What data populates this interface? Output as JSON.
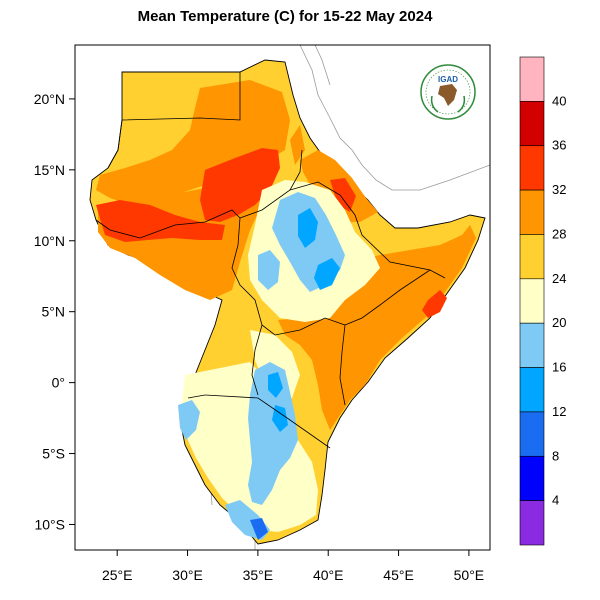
{
  "title": "Mean Temperature (C) for 15-22 May 2024",
  "logo": {
    "text": "IGAD",
    "colors": {
      "ring": "#2e8b3a",
      "text": "#1b5fa8",
      "land": "#8a5a2b"
    }
  },
  "axes": {
    "x_ticks": [
      {
        "value": 25,
        "label": "25°E"
      },
      {
        "value": 30,
        "label": "30°E"
      },
      {
        "value": 35,
        "label": "35°E"
      },
      {
        "value": 40,
        "label": "40°E"
      },
      {
        "value": 45,
        "label": "45°E"
      },
      {
        "value": 50,
        "label": "50°E"
      }
    ],
    "y_ticks": [
      {
        "value": 20,
        "label": "20°N"
      },
      {
        "value": 15,
        "label": "15°N"
      },
      {
        "value": 10,
        "label": "10°N"
      },
      {
        "value": 5,
        "label": "5°N"
      },
      {
        "value": 0,
        "label": "0°"
      },
      {
        "value": -5,
        "label": "5°S"
      },
      {
        "value": -10,
        "label": "10°S"
      }
    ],
    "lon_range": [
      22,
      51.5
    ],
    "lat_range": [
      -11.8,
      23.8
    ]
  },
  "legend": {
    "levels": [
      "4",
      "8",
      "12",
      "16",
      "20",
      "24",
      "28",
      "32",
      "36",
      "40"
    ],
    "colors": [
      "#8a2be2",
      "#0000ff",
      "#1a6cf0",
      "#00a6ff",
      "#7fcaf5",
      "#ffffc8",
      "#ffd030",
      "#ff9500",
      "#ff3800",
      "#d20000",
      "#ffb4c0"
    ]
  },
  "map_colors": {
    "warm_24_28": "#ffd030",
    "warm_28_32": "#ff9500",
    "hot_32_36": "#ff3800",
    "cool_20_24": "#ffffc8",
    "cool_16_20": "#7fcaf5",
    "cold_12_16": "#00a6ff",
    "cold_8_12": "#1a6cf0"
  }
}
